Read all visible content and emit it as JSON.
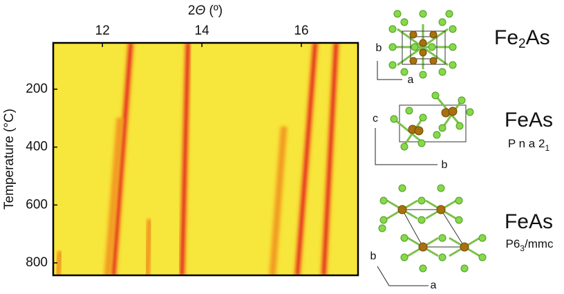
{
  "chart_data": {
    "type": "heatmap",
    "xlabel": [
      "2",
      "Θ",
      " (º)"
    ],
    "ylabel": "Temperature (°C)",
    "xlim": [
      11.01,
      17.14
    ],
    "xticks": [
      12,
      14,
      16
    ],
    "ylim": [
      40,
      843
    ],
    "y_inverted": true,
    "yticks": [
      200,
      400,
      600,
      800
    ],
    "background": "#f7e63c",
    "peaks": [
      {
        "x": [
          12.57,
          12.22
        ],
        "y": [
          40,
          843
        ],
        "color": "#e3181b"
      },
      {
        "x": [
          12.35,
          12.1
        ],
        "y": [
          300,
          843
        ],
        "color": "#f0901f"
      },
      {
        "x": [
          13.72,
          13.6
        ],
        "y": [
          40,
          843
        ],
        "color": "#e3181b"
      },
      {
        "x": [
          16.28,
          15.92
        ],
        "y": [
          40,
          843
        ],
        "color": "#e3181b"
      },
      {
        "x": [
          16.7,
          16.45
        ],
        "y": [
          40,
          843
        ],
        "color": "#e3181b"
      },
      {
        "x": [
          15.65,
          15.42
        ],
        "y": [
          330,
          843
        ],
        "color": "#f0901f"
      },
      {
        "x": [
          12.95,
          12.9
        ],
        "y": [
          650,
          843
        ],
        "color": "#f0901f"
      },
      {
        "x": [
          11.15,
          11.1
        ],
        "y": [
          760,
          843
        ],
        "color": "#f0901f"
      }
    ]
  },
  "structures": [
    {
      "formula": [
        "Fe",
        "2",
        "As"
      ],
      "axes": [
        "b",
        "a"
      ]
    },
    {
      "formula": [
        "FeAs"
      ],
      "space_group": [
        "P n a 2",
        "1"
      ],
      "axes": [
        "c",
        "b"
      ]
    },
    {
      "formula": [
        "FeAs"
      ],
      "space_group": [
        "P6",
        "3",
        "/mmc"
      ],
      "axes": [
        "b",
        "a"
      ]
    }
  ]
}
